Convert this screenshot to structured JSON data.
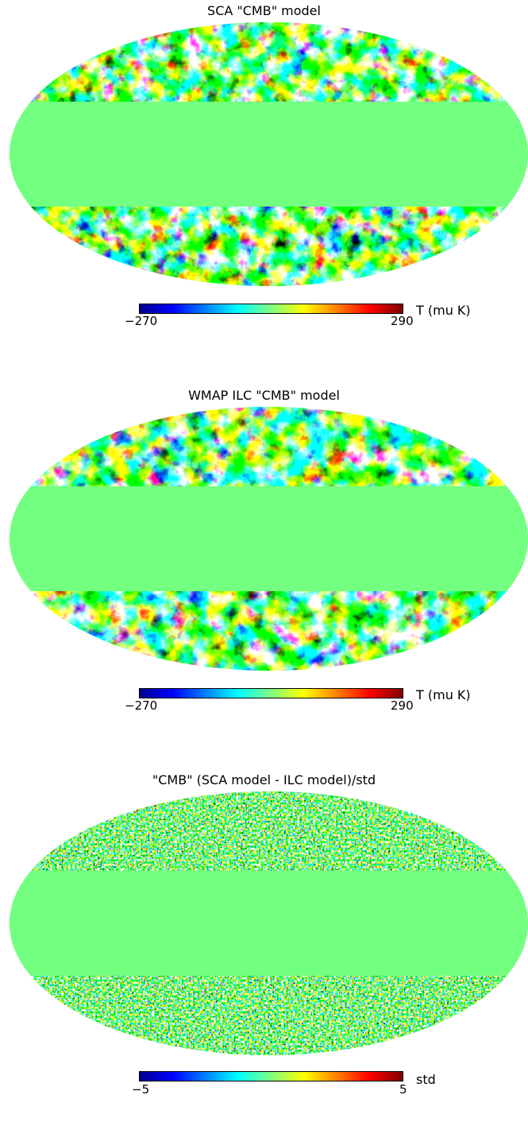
{
  "colors": {
    "mask": "#73ff80",
    "colormap": [
      "#00008f",
      "#0000ff",
      "#0080ff",
      "#00ffff",
      "#80ff80",
      "#ffff00",
      "#ff8000",
      "#ff0000",
      "#800000"
    ]
  },
  "panels": [
    {
      "title": "SCA \"CMB\" model",
      "colorbar": {
        "min": "−270",
        "max": "290",
        "unit": "T (mu K)"
      },
      "noise": "smooth"
    },
    {
      "title": "WMAP ILC \"CMB\" model",
      "colorbar": {
        "min": "−270",
        "max": "290",
        "unit": "T (mu K)"
      },
      "noise": "smooth"
    },
    {
      "title": "\"CMB\" (SCA model - ILC model)/std",
      "colorbar": {
        "min": "−5",
        "max": "5",
        "unit": "std"
      },
      "noise": "grainy"
    }
  ]
}
